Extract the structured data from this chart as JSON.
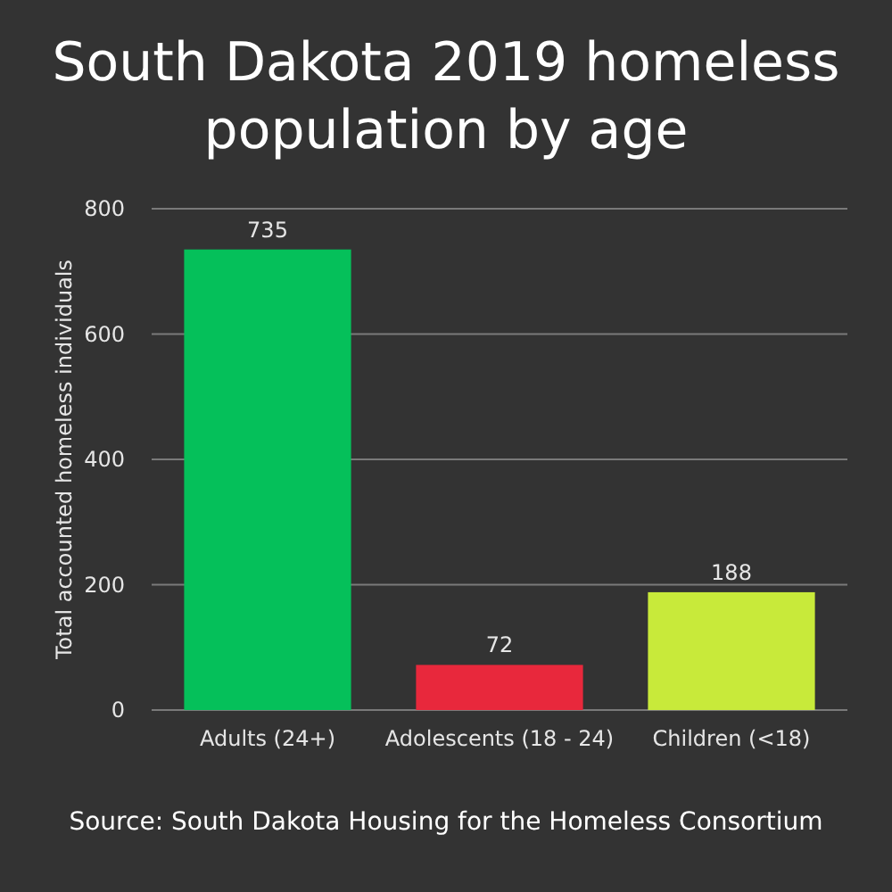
{
  "chart_data": {
    "type": "bar",
    "title": "South Dakota 2019 homeless population by age",
    "ylabel": "Total accounted homeless individuals",
    "categories": [
      "Adults (24+)",
      "Adolescents (18 - 24)",
      "Children (<18)"
    ],
    "values": [
      735,
      72,
      188
    ],
    "colors": [
      "#05c05a",
      "#e8283c",
      "#c8ea3a"
    ],
    "ylim": [
      0,
      800
    ],
    "yticks": [
      0,
      200,
      400,
      600,
      800
    ],
    "grid": "y",
    "data_labels": true,
    "annotations": [
      "Source: South Dakota Housing for the Homeless Consortium"
    ]
  }
}
